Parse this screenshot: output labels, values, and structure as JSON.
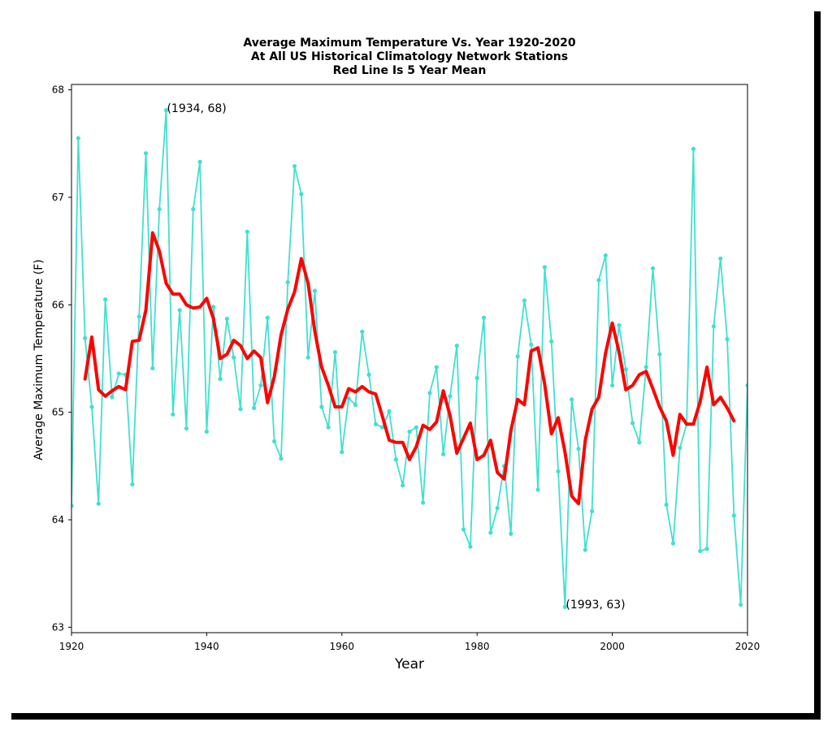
{
  "chart_data": {
    "type": "line",
    "title": [
      "Average Maximum Temperature Vs. Year 1920-2020",
      "At All US Historical Climatology Network Stations",
      "Red Line Is 5 Year Mean"
    ],
    "xlabel": "Year",
    "ylabel": "Average Maximum Temperature (F)",
    "xlim": [
      1920,
      2020
    ],
    "ylim": [
      62.95,
      68.05
    ],
    "xticks": [
      1920,
      1940,
      1960,
      1980,
      2000,
      2020
    ],
    "yticks": [
      63,
      64,
      65,
      66,
      67,
      68
    ],
    "grid": false,
    "series": [
      {
        "color": "#40e0d0",
        "marker": "dot",
        "x": [
          1920,
          1921,
          1922,
          1923,
          1924,
          1925,
          1926,
          1927,
          1928,
          1929,
          1930,
          1931,
          1932,
          1933,
          1934,
          1935,
          1936,
          1937,
          1938,
          1939,
          1940,
          1941,
          1942,
          1943,
          1944,
          1945,
          1946,
          1947,
          1948,
          1949,
          1950,
          1951,
          1952,
          1953,
          1954,
          1955,
          1956,
          1957,
          1958,
          1959,
          1960,
          1961,
          1962,
          1963,
          1964,
          1965,
          1966,
          1967,
          1968,
          1969,
          1970,
          1971,
          1972,
          1973,
          1974,
          1975,
          1976,
          1977,
          1978,
          1979,
          1980,
          1981,
          1982,
          1983,
          1984,
          1985,
          1986,
          1987,
          1988,
          1989,
          1990,
          1991,
          1992,
          1993,
          1994,
          1995,
          1996,
          1997,
          1998,
          1999,
          2000,
          2001,
          2002,
          2003,
          2004,
          2005,
          2006,
          2007,
          2008,
          2009,
          2010,
          2011,
          2012,
          2013,
          2014,
          2015,
          2016,
          2017,
          2018,
          2019,
          2020
        ],
        "y": [
          64.13,
          67.55,
          65.69,
          65.05,
          64.15,
          66.05,
          65.14,
          65.36,
          65.35,
          64.33,
          65.89,
          67.41,
          65.41,
          66.89,
          67.81,
          64.98,
          65.95,
          64.85,
          66.89,
          67.33,
          64.82,
          65.98,
          65.31,
          65.87,
          65.51,
          65.03,
          66.68,
          65.04,
          65.25,
          65.88,
          64.73,
          64.57,
          66.21,
          67.29,
          67.03,
          65.51,
          66.13,
          65.05,
          64.86,
          65.56,
          64.63,
          65.13,
          65.07,
          65.75,
          65.35,
          64.89,
          64.86,
          65.01,
          64.56,
          64.32,
          64.82,
          64.86,
          64.16,
          65.18,
          65.42,
          64.61,
          65.15,
          65.62,
          63.91,
          63.75,
          65.32,
          65.88,
          63.88,
          64.11,
          64.5,
          63.87,
          65.52,
          66.04,
          65.63,
          64.28,
          66.35,
          65.66,
          64.45,
          63.19,
          65.12,
          64.66,
          63.72,
          64.08,
          66.23,
          66.46,
          65.25,
          65.81,
          65.4,
          64.9,
          64.72,
          65.42,
          66.34,
          65.54,
          64.14,
          63.78,
          64.67,
          64.89,
          67.45,
          63.71,
          63.73,
          65.8,
          66.43,
          65.68,
          64.04,
          63.21,
          65.25
        ]
      },
      {
        "color": "#ff0000",
        "name": "5 Year Mean",
        "x": [
          1922,
          1923,
          1924,
          1925,
          1926,
          1927,
          1928,
          1929,
          1930,
          1931,
          1932,
          1933,
          1934,
          1935,
          1936,
          1937,
          1938,
          1939,
          1940,
          1941,
          1942,
          1943,
          1944,
          1945,
          1946,
          1947,
          1948,
          1949,
          1950,
          1951,
          1952,
          1953,
          1954,
          1955,
          1956,
          1957,
          1958,
          1959,
          1960,
          1961,
          1962,
          1963,
          1964,
          1965,
          1966,
          1967,
          1968,
          1969,
          1970,
          1971,
          1972,
          1973,
          1974,
          1975,
          1976,
          1977,
          1978,
          1979,
          1980,
          1981,
          1982,
          1983,
          1984,
          1985,
          1986,
          1987,
          1988,
          1989,
          1990,
          1991,
          1992,
          1993,
          1994,
          1995,
          1996,
          1997,
          1998,
          1999,
          2000,
          2001,
          2002,
          2003,
          2004,
          2005,
          2006,
          2007,
          2008,
          2009,
          2010,
          2011,
          2012,
          2013,
          2014,
          2015,
          2016,
          2017,
          2018
        ],
        "y": [
          65.31,
          65.7,
          65.21,
          65.15,
          65.2,
          65.24,
          65.21,
          65.66,
          65.67,
          65.95,
          66.67,
          66.5,
          66.2,
          66.1,
          66.1,
          66.0,
          65.97,
          65.98,
          66.06,
          65.87,
          65.5,
          65.54,
          65.67,
          65.62,
          65.5,
          65.57,
          65.51,
          65.09,
          65.33,
          65.72,
          65.96,
          66.12,
          66.43,
          66.2,
          65.75,
          65.42,
          65.25,
          65.05,
          65.05,
          65.22,
          65.19,
          65.24,
          65.19,
          65.17,
          64.96,
          64.74,
          64.72,
          64.72,
          64.56,
          64.68,
          64.88,
          64.84,
          64.91,
          65.2,
          64.97,
          64.62,
          64.76,
          64.9,
          64.56,
          64.6,
          64.74,
          64.44,
          64.38,
          64.83,
          65.12,
          65.07,
          65.57,
          65.6,
          65.26,
          64.8,
          64.95,
          64.63,
          64.22,
          64.15,
          64.74,
          65.03,
          65.14,
          65.55,
          65.83,
          65.56,
          65.21,
          65.25,
          65.35,
          65.38,
          65.22,
          65.05,
          64.92,
          64.6,
          64.98,
          64.89,
          64.89,
          65.1,
          65.42,
          65.07,
          65.14,
          65.04,
          64.92
        ]
      }
    ],
    "annotations": [
      {
        "text": "(1934, 68)",
        "x": 1934,
        "y": 67.81
      },
      {
        "text": "(1993, 63)",
        "x": 1993,
        "y": 63.19
      }
    ]
  }
}
